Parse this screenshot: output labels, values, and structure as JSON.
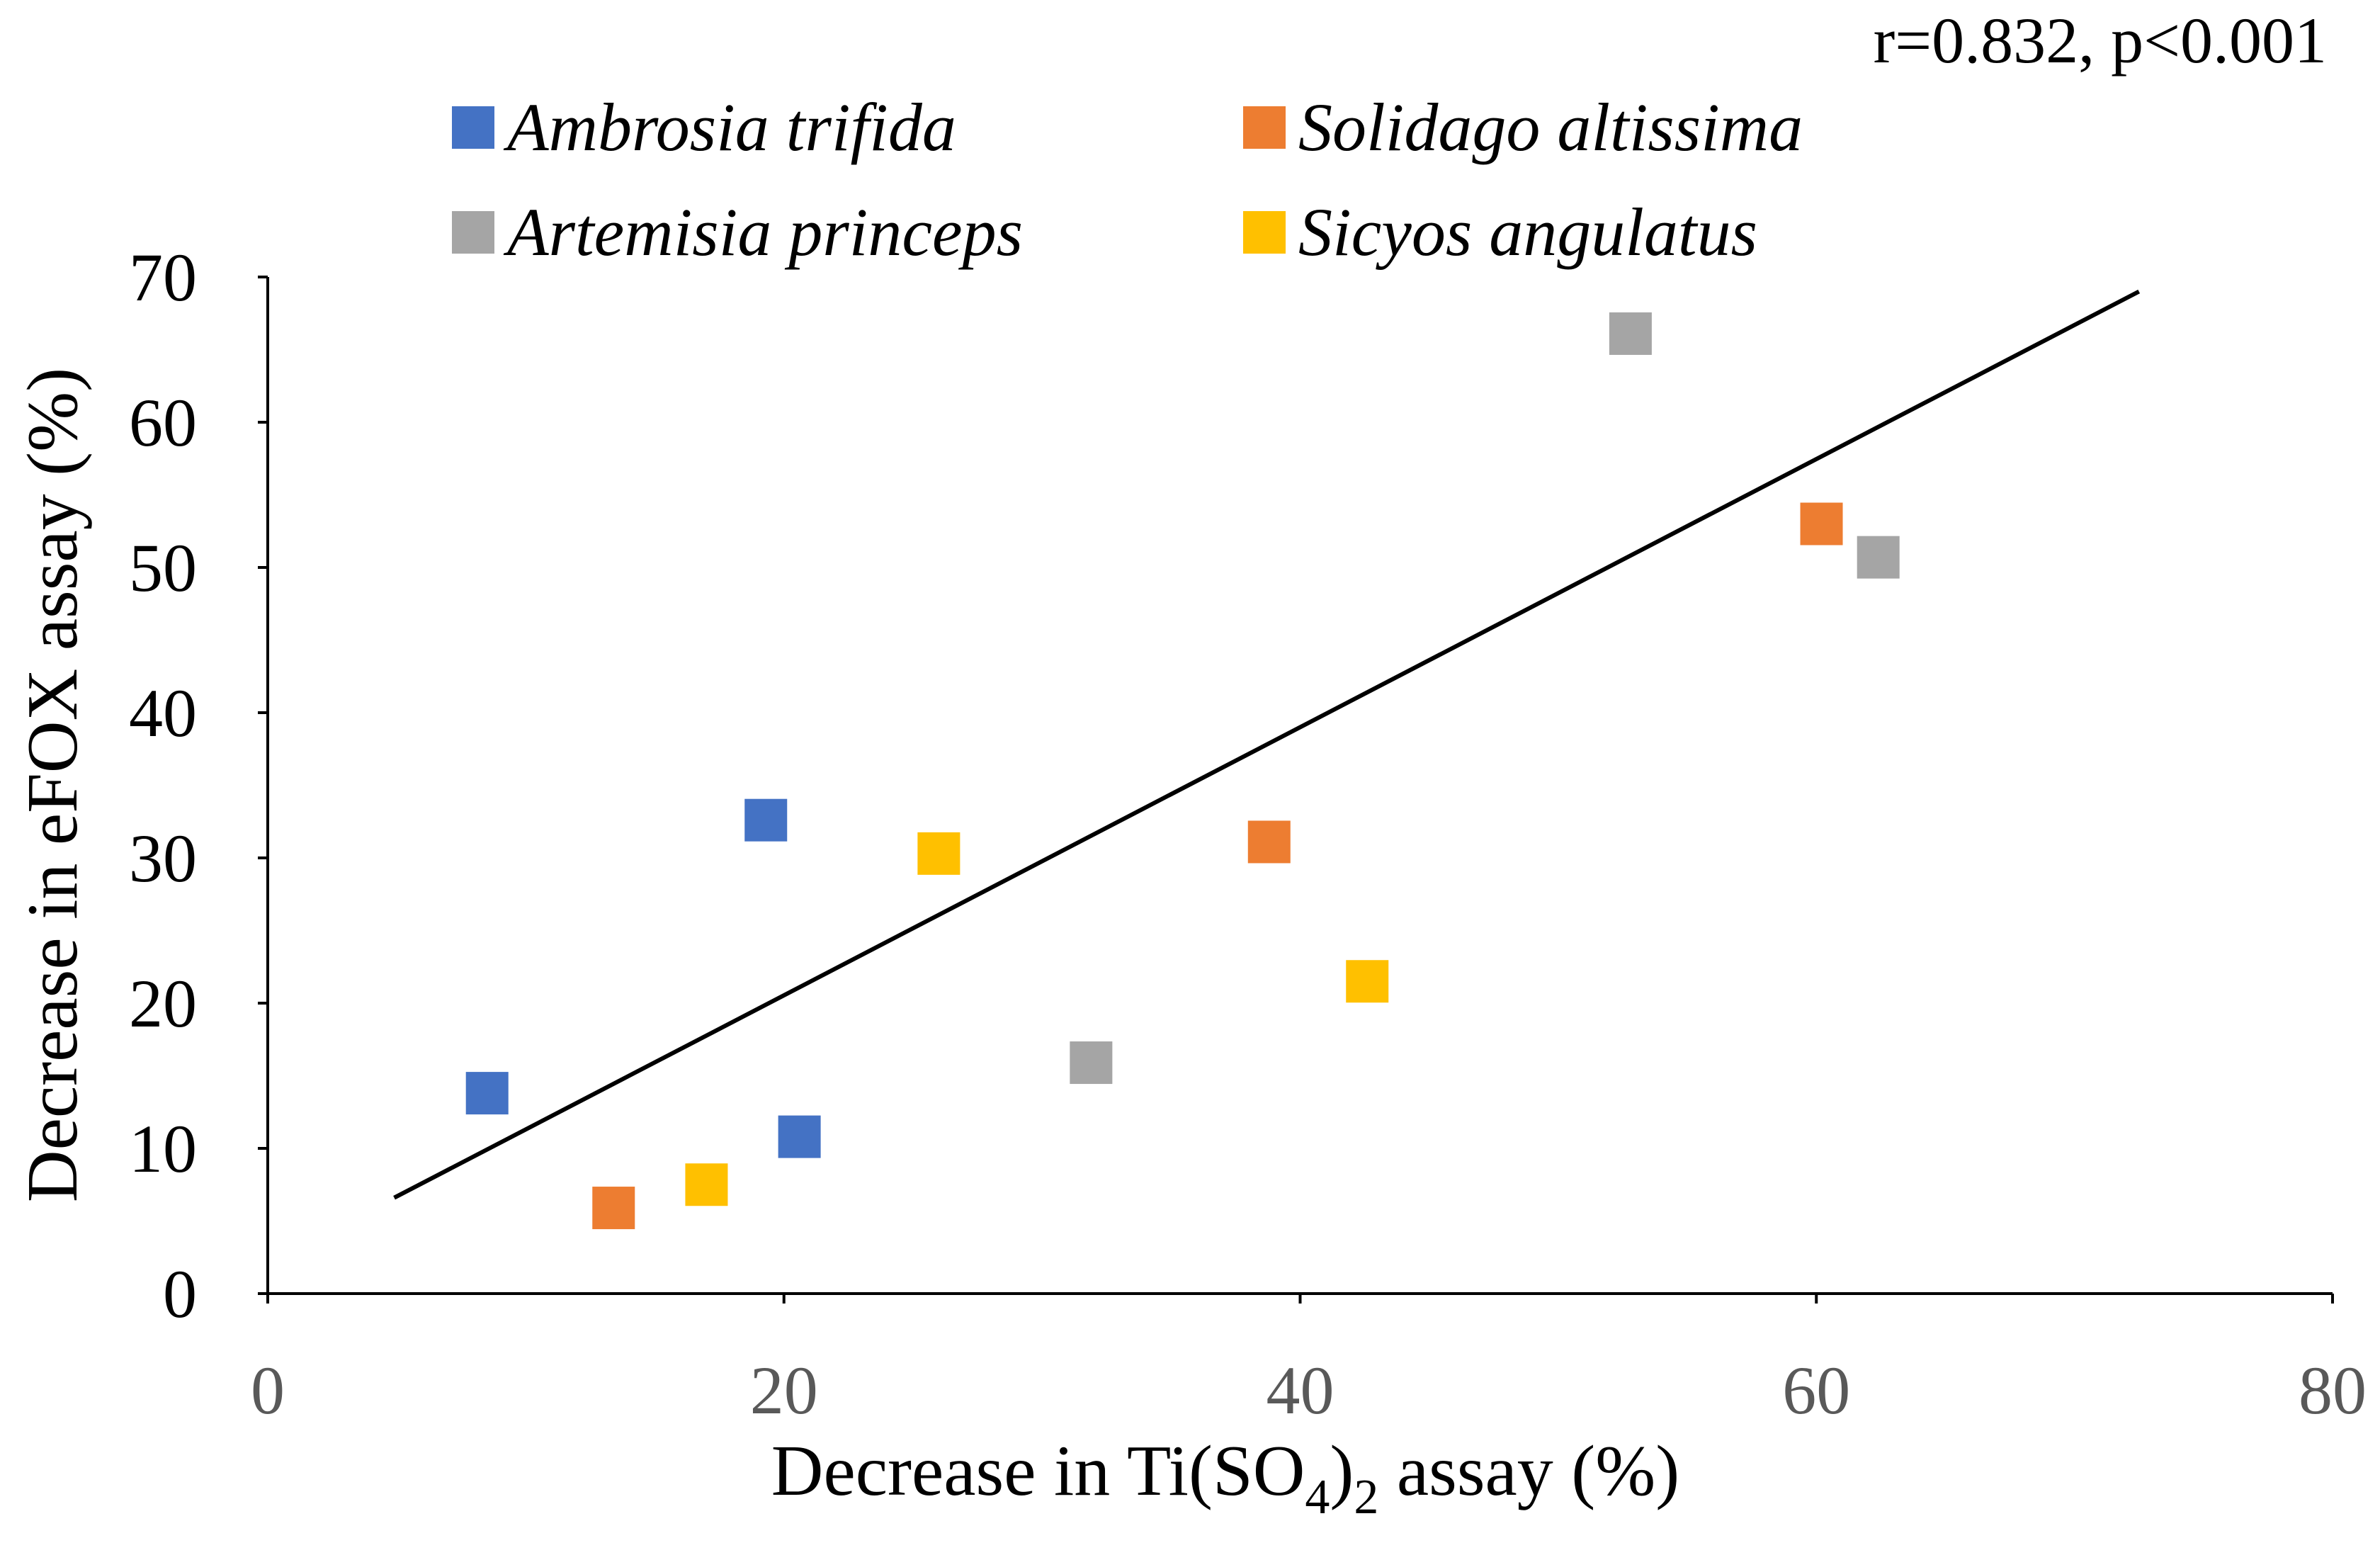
{
  "chart_data": {
    "type": "scatter",
    "title": "",
    "annotation": "r=0.832, p<0.001",
    "xlabel": {
      "main": "Decrease in Ti(SO",
      "sub1": "4",
      "mid": ")",
      "sub2": "2",
      "tail": " assay (%)"
    },
    "ylabel": "Decrease in eFOX assay (%)",
    "xlim": [
      0,
      80
    ],
    "ylim": [
      0,
      70
    ],
    "xticks": [
      "0",
      "20",
      "40",
      "60",
      "80"
    ],
    "yticks": [
      "0",
      "10",
      "20",
      "30",
      "40",
      "50",
      "60",
      "70"
    ],
    "grid": false,
    "legend_position": "top",
    "series": [
      {
        "name": "Ambrosia trifida",
        "color": "#4472C4",
        "points": [
          {
            "x": 8.5,
            "y": 13.8
          },
          {
            "x": 19.3,
            "y": 32.6
          },
          {
            "x": 20.6,
            "y": 10.8
          }
        ]
      },
      {
        "name": "Solidago altissima",
        "color": "#ED7D31",
        "points": [
          {
            "x": 13.4,
            "y": 5.9
          },
          {
            "x": 38.8,
            "y": 31.1
          },
          {
            "x": 60.2,
            "y": 53.0
          }
        ]
      },
      {
        "name": "Artemisia princeps",
        "color": "#A5A5A5",
        "points": [
          {
            "x": 31.9,
            "y": 15.9
          },
          {
            "x": 52.8,
            "y": 66.1
          },
          {
            "x": 62.4,
            "y": 50.7
          }
        ]
      },
      {
        "name": "Sicyos angulatus",
        "color": "#FFC000",
        "points": [
          {
            "x": 17.0,
            "y": 7.5
          },
          {
            "x": 26.0,
            "y": 30.3
          },
          {
            "x": 42.6,
            "y": 21.5
          }
        ]
      }
    ],
    "trendline": {
      "x": [
        4.9,
        72.5
      ],
      "y": [
        6.6,
        69.0
      ],
      "color": "#000000"
    }
  }
}
